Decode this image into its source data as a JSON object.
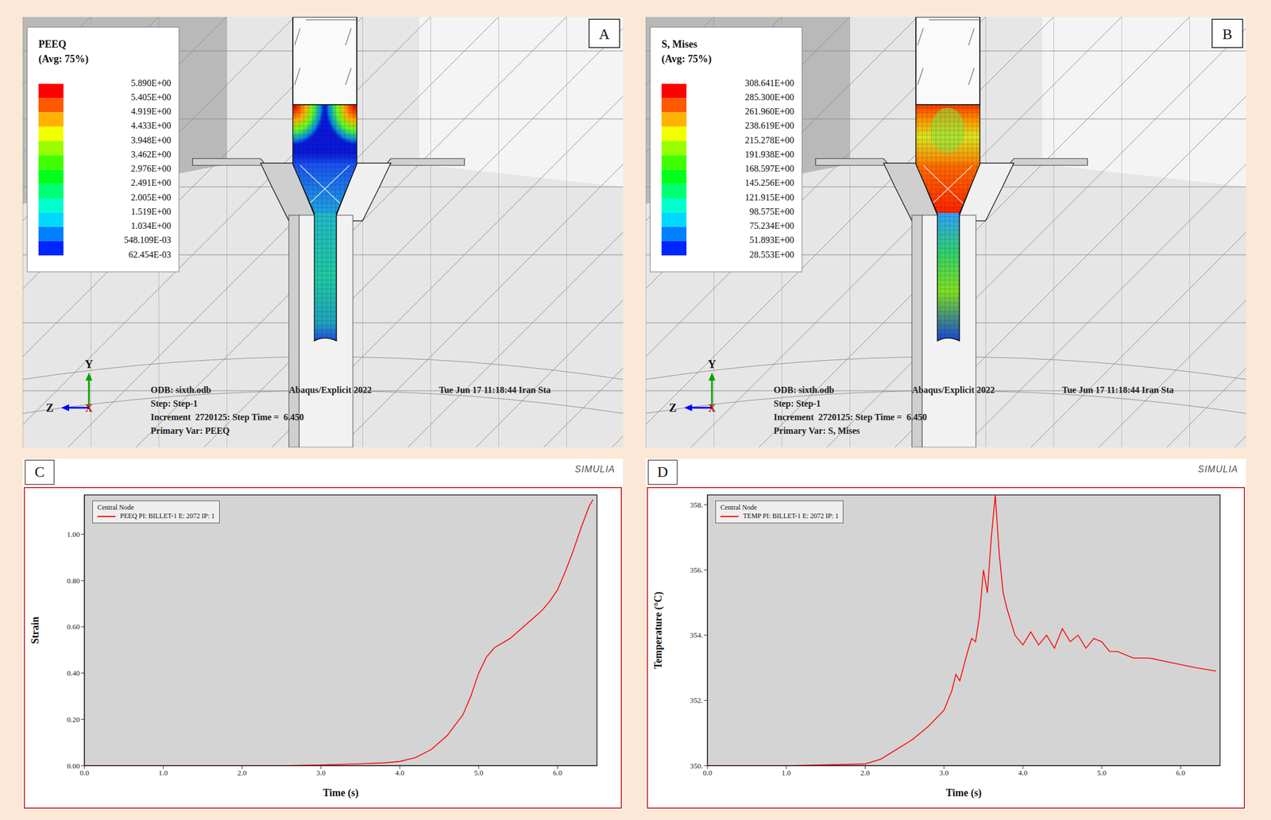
{
  "panels": [
    {
      "letter": "A",
      "legend": {
        "title": "PEEQ",
        "subtitle": "(Avg: 75%)",
        "labels": [
          "5.890E+00",
          "5.405E+00",
          "4.919E+00",
          "4.433E+00",
          "3.948E+00",
          "3.462E+00",
          "2.976E+00",
          "2.491E+00",
          "2.005E+00",
          "1.519E+00",
          "1.034E+00",
          "548.109E-03",
          "62.454E-03"
        ]
      },
      "info": {
        "odb": "ODB: sixth.odb",
        "solver": "Abaqus/Explicit 2022",
        "date": "Tue Jun 17 11:18:44 Iran Sta",
        "step": "Step: Step-1",
        "increment": "Increment  2720125: Step Time =  6.450",
        "primary_var": "Primary Var: PEEQ"
      },
      "triad": [
        "Y",
        "Z",
        "X"
      ]
    },
    {
      "letter": "B",
      "legend": {
        "title": "S, Mises",
        "subtitle": "(Avg: 75%)",
        "labels": [
          "308.641E+00",
          "285.300E+00",
          "261.960E+00",
          "238.619E+00",
          "215.278E+00",
          "191.938E+00",
          "168.597E+00",
          "145.256E+00",
          "121.915E+00",
          "98.575E+00",
          "75.234E+00",
          "51.893E+00",
          "28.553E+00"
        ]
      },
      "info": {
        "odb": "ODB: sixth.odb",
        "solver": "Abaqus/Explicit 2022",
        "date": "Tue Jun 17 11:18:44 Iran Sta",
        "step": "Step: Step-1",
        "increment": "Increment  2720125: Step Time =  6.450",
        "primary_var": "Primary Var: S, Mises"
      },
      "triad": [
        "Y",
        "Z",
        "X"
      ]
    }
  ],
  "chart_data": [
    {
      "letter": "C",
      "brand": "SIMULIA",
      "type": "line",
      "legend_title": "Central Node",
      "legend": "upper left",
      "x_label": "Time (s)",
      "y_label": "Strain",
      "grid": false,
      "xlim": [
        0,
        6.5
      ],
      "xticks": [
        {
          "value": 0,
          "label": "0.0"
        },
        {
          "value": 1,
          "label": "1.0"
        },
        {
          "value": 2,
          "label": "2.0"
        },
        {
          "value": 3,
          "label": "3.0"
        },
        {
          "value": 4,
          "label": "4.0"
        },
        {
          "value": 5,
          "label": "5.0"
        },
        {
          "value": 6,
          "label": "6.0"
        }
      ],
      "ylim": [
        0,
        1.17
      ],
      "yticks": [
        {
          "value": 0,
          "label": "0.00"
        },
        {
          "value": 0.2,
          "label": "0.20"
        },
        {
          "value": 0.4,
          "label": "0.40"
        },
        {
          "value": 0.6,
          "label": "0.60"
        },
        {
          "value": 0.8,
          "label": "0.80"
        },
        {
          "value": 1,
          "label": "1.00"
        }
      ],
      "x": [
        0,
        0.5,
        1,
        1.5,
        2,
        2.5,
        3,
        3.5,
        3.8,
        4,
        4.2,
        4.4,
        4.6,
        4.8,
        4.9,
        5,
        5.1,
        5.2,
        5.3,
        5.4,
        5.5,
        5.6,
        5.7,
        5.8,
        5.9,
        6,
        6.1,
        6.2,
        6.3,
        6.4,
        6.45
      ],
      "series": [
        {
          "name": "PEEQ PI: BILLET-1 E: 2072 IP: 1",
          "color": "#ff0000",
          "values": [
            0,
            0,
            0,
            0,
            0,
            0,
            0.003,
            0.008,
            0.012,
            0.018,
            0.035,
            0.07,
            0.13,
            0.22,
            0.3,
            0.4,
            0.47,
            0.51,
            0.53,
            0.55,
            0.58,
            0.61,
            0.64,
            0.67,
            0.71,
            0.76,
            0.84,
            0.93,
            1.03,
            1.12,
            1.15
          ]
        }
      ]
    },
    {
      "letter": "D",
      "brand": "SIMULIA",
      "type": "line",
      "legend_title": "Central Node",
      "legend": "upper left",
      "x_label": "Time (s)",
      "y_label": "Temperature (°C)",
      "grid": false,
      "xlim": [
        0,
        6.5
      ],
      "xticks": [
        {
          "value": 0,
          "label": "0.0"
        },
        {
          "value": 1,
          "label": "1.0"
        },
        {
          "value": 2,
          "label": "2.0"
        },
        {
          "value": 3,
          "label": "3.0"
        },
        {
          "value": 4,
          "label": "4.0"
        },
        {
          "value": 5,
          "label": "5.0"
        },
        {
          "value": 6,
          "label": "6.0"
        }
      ],
      "ylim": [
        350,
        358.3
      ],
      "yticks": [
        {
          "value": 350,
          "label": "350."
        },
        {
          "value": 352,
          "label": "352."
        },
        {
          "value": 354,
          "label": "354."
        },
        {
          "value": 356,
          "label": "356."
        },
        {
          "value": 358,
          "label": "358."
        }
      ],
      "x": [
        0,
        1,
        2,
        2.2,
        2.4,
        2.6,
        2.8,
        3.0,
        3.1,
        3.15,
        3.2,
        3.3,
        3.35,
        3.4,
        3.45,
        3.5,
        3.55,
        3.6,
        3.65,
        3.7,
        3.75,
        3.8,
        3.9,
        4.0,
        4.1,
        4.2,
        4.3,
        4.4,
        4.5,
        4.6,
        4.7,
        4.8,
        4.9,
        5.0,
        5.1,
        5.2,
        5.4,
        5.6,
        5.8,
        6.0,
        6.2,
        6.45
      ],
      "series": [
        {
          "name": "TEMP PI: BILLET-1 E: 2072 IP: 1",
          "color": "#ff0000",
          "values": [
            350,
            350,
            350.05,
            350.2,
            350.5,
            350.8,
            351.2,
            351.7,
            352.3,
            352.8,
            352.6,
            353.5,
            353.9,
            353.8,
            354.6,
            356.0,
            355.3,
            357.0,
            358.3,
            356.5,
            355.3,
            354.8,
            354.0,
            353.7,
            354.1,
            353.7,
            354.0,
            353.6,
            354.2,
            353.8,
            354.0,
            353.6,
            353.9,
            353.8,
            353.5,
            353.5,
            353.3,
            353.3,
            353.2,
            353.1,
            353.0,
            352.9
          ]
        }
      ]
    }
  ]
}
